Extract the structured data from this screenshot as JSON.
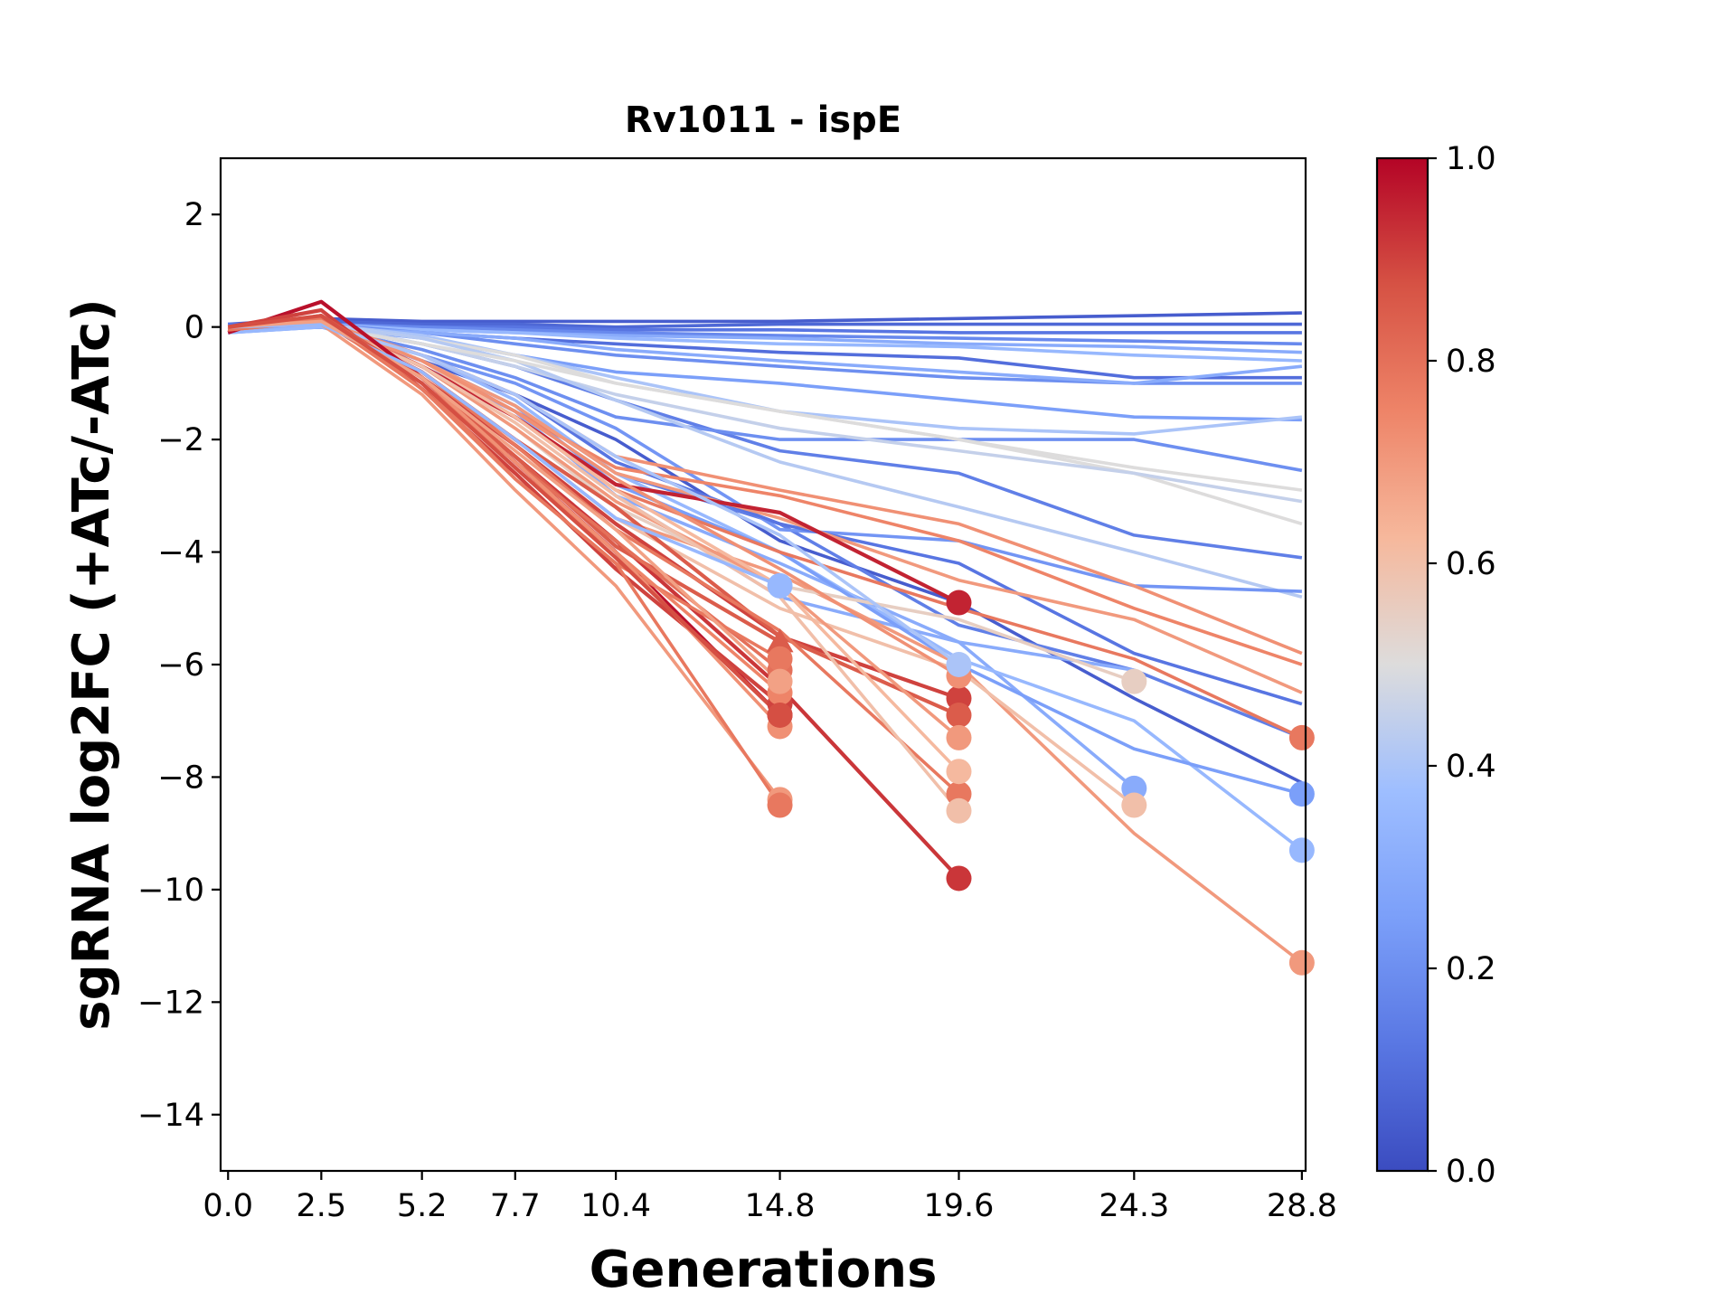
{
  "chart_data": {
    "type": "line",
    "title": "Rv1011 - ispE",
    "xlabel": "Generations",
    "ylabel": "sgRNA log2FC (+ATc/-ATc)",
    "x_ticks": [
      "0.0",
      "2.5",
      "5.2",
      "7.7",
      "10.4",
      "14.8",
      "19.6",
      "24.3",
      "28.8"
    ],
    "y_ticks": [
      "2",
      "0",
      "−2",
      "−4",
      "−6",
      "−8",
      "−10",
      "−12",
      "−14"
    ],
    "xlim": [
      -0.2,
      28.9
    ],
    "ylim": [
      -15,
      3
    ],
    "grid": false,
    "colorbar": {
      "colormap": "coolwarm",
      "range": [
        0,
        1
      ],
      "ticks": [
        "0.0",
        "0.2",
        "0.4",
        "0.6",
        "0.8",
        "1.0"
      ]
    },
    "x": [
      0.0,
      2.5,
      5.2,
      7.7,
      10.4,
      14.8,
      19.6,
      24.3,
      28.8
    ],
    "series": [
      {
        "c": 0.05,
        "values": [
          0.05,
          0.15,
          0.1,
          0.1,
          0.1,
          0.1,
          0.15,
          0.2,
          0.25
        ]
      },
      {
        "c": 0.08,
        "values": [
          0,
          0.1,
          0.05,
          0.05,
          0,
          0.05,
          0.05,
          0.05,
          0.05
        ]
      },
      {
        "c": 0.12,
        "values": [
          0.05,
          0.05,
          0,
          0,
          -0.05,
          -0.05,
          -0.1,
          -0.1,
          -0.1
        ]
      },
      {
        "c": 0.18,
        "values": [
          0,
          0.05,
          0,
          -0.05,
          -0.1,
          -0.15,
          -0.2,
          -0.25,
          -0.3
        ]
      },
      {
        "c": 0.3,
        "values": [
          -0.05,
          0,
          -0.05,
          -0.1,
          -0.15,
          -0.2,
          -0.3,
          -0.35,
          -0.45
        ]
      },
      {
        "c": 0.35,
        "values": [
          0,
          0.05,
          -0.05,
          -0.1,
          -0.2,
          -0.3,
          -0.35,
          -0.5,
          -0.6
        ]
      },
      {
        "c": 0.1,
        "values": [
          -0.05,
          0,
          -0.1,
          -0.2,
          -0.3,
          -0.45,
          -0.55,
          -0.9,
          -0.9
        ]
      },
      {
        "c": 0.2,
        "values": [
          0,
          0.05,
          -0.1,
          -0.3,
          -0.5,
          -0.7,
          -0.9,
          -1.0,
          -1.0
        ]
      },
      {
        "c": 0.3,
        "values": [
          0,
          0,
          -0.1,
          -0.2,
          -0.4,
          -0.6,
          -0.8,
          -1.0,
          -0.7
        ]
      },
      {
        "c": 0.25,
        "values": [
          -0.05,
          0,
          -0.2,
          -0.5,
          -0.8,
          -1.0,
          -1.3,
          -1.6,
          -1.65
        ]
      },
      {
        "c": 0.4,
        "values": [
          0,
          0.05,
          -0.15,
          -0.5,
          -0.9,
          -1.5,
          -1.8,
          -1.9,
          -1.6
        ]
      },
      {
        "c": 0.15,
        "values": [
          -0.05,
          0,
          -0.3,
          -0.7,
          -1.3,
          -2.2,
          -2.6,
          -3.7,
          -4.1
        ]
      },
      {
        "c": 0.2,
        "values": [
          -0.05,
          0,
          -0.4,
          -0.9,
          -1.6,
          -2.0,
          -2.0,
          -2.0,
          -2.55
        ]
      },
      {
        "c": 0.5,
        "values": [
          0,
          0.05,
          -0.2,
          -0.5,
          -1.0,
          -1.5,
          -2.0,
          -2.6,
          -3.5
        ]
      },
      {
        "c": 0.45,
        "values": [
          0,
          0.05,
          -0.3,
          -0.7,
          -1.2,
          -1.8,
          -2.2,
          -2.6,
          -3.1
        ]
      },
      {
        "c": 0.42,
        "values": [
          -0.05,
          0.05,
          -0.2,
          -0.6,
          -1.3,
          -2.4,
          -3.2,
          -4.0,
          -4.8
        ]
      },
      {
        "c": 0.5,
        "values": [
          0,
          0,
          -0.3,
          -0.6,
          -1.0,
          -1.5,
          -2.0,
          -2.5,
          -2.9
        ]
      },
      {
        "c": 0.05,
        "values": [
          0,
          0.05,
          -0.6,
          -1.2,
          -2.0,
          -3.8,
          -4.9,
          -6.6,
          -8.1
        ]
      },
      {
        "c": 0.15,
        "values": [
          0,
          0.1,
          -0.6,
          -1.4,
          -2.6,
          -3.5,
          -5.3,
          -6.1,
          -7.3
        ]
      },
      {
        "c": 0.22,
        "values": [
          -0.1,
          0,
          -0.5,
          -1.0,
          -1.8,
          -3.6,
          -3.8,
          -4.6,
          -4.7
        ]
      },
      {
        "c": 0.12,
        "values": [
          0,
          0.05,
          -0.5,
          -1.2,
          -2.4,
          -3.5,
          -4.2,
          -5.8,
          -6.7
        ]
      },
      {
        "c": 0.3,
        "values": [
          -0.1,
          0.05,
          -0.7,
          -1.5,
          -3.0,
          -4.8,
          -5.6,
          -6.1,
          null
        ]
      },
      {
        "c": 0.3,
        "values": [
          0,
          0.05,
          -0.6,
          -1.5,
          -3.0,
          -4.2,
          -5.6,
          -8.2,
          null
        ],
        "end": 24.3
      },
      {
        "c": 0.35,
        "values": [
          -0.1,
          0,
          -0.5,
          -1.3,
          -2.6,
          -4.0,
          -5.9,
          -7.0,
          -9.3
        ],
        "end": 28.8
      },
      {
        "c": 0.25,
        "values": [
          0,
          0.05,
          -0.6,
          -1.4,
          -2.8,
          -4.0,
          -6.0,
          -7.5,
          -8.3
        ],
        "end": 28.8
      },
      {
        "c": 0.75,
        "values": [
          -0.05,
          0.1,
          -0.6,
          -1.5,
          -2.5,
          -3.0,
          -3.8,
          -5.0,
          -6.0
        ]
      },
      {
        "c": 0.72,
        "values": [
          0,
          0.1,
          -0.5,
          -1.2,
          -2.3,
          -2.9,
          -3.5,
          -4.6,
          -5.8
        ]
      },
      {
        "c": 0.7,
        "values": [
          0,
          0.1,
          -0.6,
          -1.4,
          -2.6,
          -3.4,
          -4.5,
          -5.2,
          -6.5
        ]
      },
      {
        "c": 0.78,
        "values": [
          -0.05,
          0.15,
          -0.7,
          -1.6,
          -2.9,
          -4.0,
          -5.0,
          -5.9,
          -7.3
        ],
        "end": 28.8
      },
      {
        "c": 0.7,
        "values": [
          0,
          0.1,
          -0.8,
          -2.0,
          -3.4,
          -4.4,
          -6.0,
          -9.0,
          -11.3
        ],
        "end": 28.8
      },
      {
        "c": 0.55,
        "values": [
          0,
          0.05,
          -0.7,
          -1.8,
          -3.2,
          -4.6,
          -5.2,
          -6.3,
          null
        ],
        "end": 24.3
      },
      {
        "c": 0.6,
        "values": [
          0,
          0.1,
          -0.8,
          -2.0,
          -3.4,
          -5.0,
          -6.1,
          -8.5,
          null
        ],
        "end": 24.3
      },
      {
        "c": 0.95,
        "values": [
          0,
          0.1,
          -0.7,
          -1.6,
          -2.8,
          -3.3,
          -4.9,
          null,
          null
        ],
        "end": 19.6
      },
      {
        "c": 0.9,
        "values": [
          -0.05,
          0.2,
          -0.9,
          -2.1,
          -3.5,
          -5.5,
          -6.6,
          null,
          null
        ],
        "end": 19.6
      },
      {
        "c": 0.92,
        "values": [
          0,
          0.15,
          -0.9,
          -2.3,
          -3.8,
          -6.4,
          -9.8,
          null,
          null
        ],
        "end": 19.6
      },
      {
        "c": 0.85,
        "values": [
          0,
          0.1,
          -0.8,
          -2.0,
          -3.2,
          -5.5,
          -6.9,
          null,
          null
        ],
        "end": 19.6
      },
      {
        "c": 0.78,
        "values": [
          0,
          0.1,
          -0.8,
          -2.1,
          -3.6,
          -5.4,
          -8.3,
          null,
          null
        ],
        "end": 19.6
      },
      {
        "c": 0.7,
        "values": [
          -0.05,
          0.1,
          -0.7,
          -1.8,
          -3.1,
          -4.6,
          -7.3,
          null,
          null
        ],
        "end": 19.6
      },
      {
        "c": 0.62,
        "values": [
          0,
          0.1,
          -0.6,
          -1.6,
          -2.9,
          -4.6,
          -7.9,
          null,
          null
        ],
        "end": 19.6
      },
      {
        "c": 0.6,
        "values": [
          0,
          0.05,
          -0.7,
          -1.7,
          -3.0,
          -4.8,
          -8.6,
          null,
          null
        ],
        "end": 19.6
      },
      {
        "c": 0.72,
        "values": [
          0,
          0.1,
          -0.6,
          -1.5,
          -2.7,
          -4.3,
          -6.2,
          null,
          null
        ],
        "end": 19.6
      },
      {
        "c": 0.4,
        "values": [
          0,
          0.05,
          -0.5,
          -1.2,
          -2.3,
          -3.7,
          -6.0,
          null,
          null
        ],
        "end": 19.6
      },
      {
        "c": 0.98,
        "values": [
          -0.1,
          0.45,
          -0.9,
          -2.4,
          -4.0,
          -6.9,
          null,
          null,
          null
        ],
        "end": 14.8
      },
      {
        "c": 0.9,
        "values": [
          0,
          0.3,
          -1.1,
          -2.6,
          -4.3,
          -6.7,
          null,
          null,
          null
        ],
        "end": 14.8
      },
      {
        "c": 0.85,
        "values": [
          -0.05,
          0.2,
          -0.9,
          -2.3,
          -3.9,
          -5.6,
          null,
          null,
          null
        ],
        "end": 14.8,
        "marker": "triangle"
      },
      {
        "c": 0.8,
        "values": [
          0,
          0.15,
          -1.0,
          -2.4,
          -3.8,
          -6.1,
          null,
          null,
          null
        ],
        "end": 14.8
      },
      {
        "c": 0.78,
        "values": [
          0,
          0.15,
          -1.1,
          -2.7,
          -4.2,
          -5.9,
          null,
          null,
          null
        ],
        "end": 14.8
      },
      {
        "c": 0.75,
        "values": [
          -0.05,
          0.1,
          -1.0,
          -2.5,
          -4.0,
          -6.5,
          null,
          null,
          null
        ],
        "end": 14.8
      },
      {
        "c": 0.72,
        "values": [
          0,
          0.1,
          -0.9,
          -2.4,
          -4.0,
          -7.1,
          null,
          null,
          null
        ],
        "end": 14.8
      },
      {
        "c": 0.7,
        "values": [
          0,
          0.05,
          -1.2,
          -2.9,
          -4.6,
          -8.4,
          null,
          null,
          null
        ],
        "end": 14.8
      },
      {
        "c": 0.78,
        "values": [
          -0.05,
          0.1,
          -1.0,
          -2.7,
          -4.2,
          -8.5,
          null,
          null,
          null
        ],
        "end": 14.8
      },
      {
        "c": 0.35,
        "values": [
          0,
          0.05,
          -0.8,
          -2.0,
          -3.4,
          -4.6,
          null,
          null,
          null
        ],
        "end": 14.8
      },
      {
        "c": 0.68,
        "values": [
          0,
          0.1,
          -0.9,
          -2.2,
          -3.6,
          -6.3,
          null,
          null,
          null
        ],
        "end": 14.8
      },
      {
        "c": 0.88,
        "values": [
          0,
          0.2,
          -1.0,
          -2.5,
          -4.1,
          -6.9,
          null,
          null,
          null
        ],
        "end": 14.8
      }
    ]
  }
}
